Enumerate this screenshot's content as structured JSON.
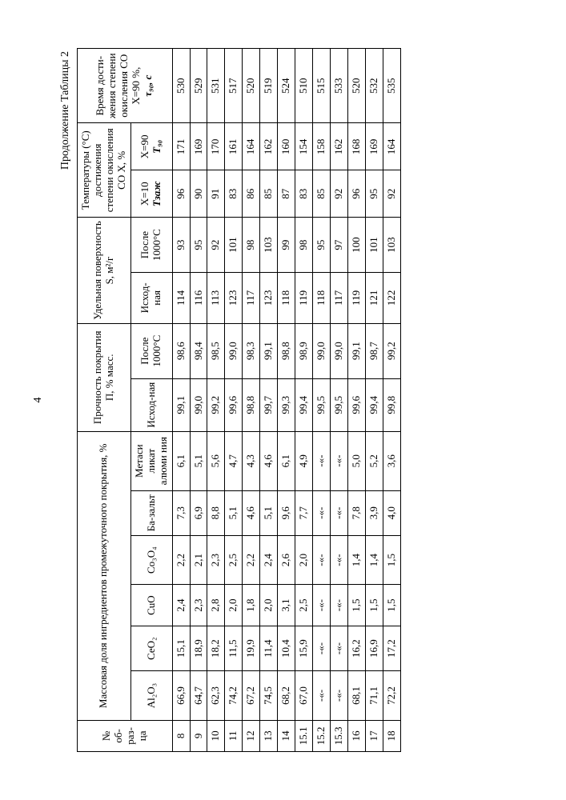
{
  "page_number": "4",
  "caption": "Продолжение Таблицы 2",
  "headers": {
    "num": "№ об-раз-ца",
    "mass_group": "Массовая доля ингредиентов промежуточного покрытия, %",
    "al2o3": "Al₂O₃",
    "ceo2": "CeO₂",
    "cuo": "CuO",
    "co3o4": "Co₃O₄",
    "bazalt": "Ба-зальт",
    "meta": "Метаси ликат алюми ния",
    "strength_group": "Прочность покрытия П, % масс.",
    "ishod": "Исход-ная",
    "after1000": "После 1000°С",
    "surface_group": "Удельная поверхность S, м²/г",
    "temp_group": "Температуры (°С) достижения степени окисления СО X, %",
    "t10_a": "X=10",
    "t10_b": "Tзаж",
    "t90_a": "X=90",
    "t90_b": "T₉₀",
    "time_group_a": "Время дости-жения степени окисления СО",
    "time_group_b": "X=90 %,",
    "time_group_c": "τ₉₀, c"
  },
  "rows": [
    {
      "n": "8",
      "al": "66,9",
      "ce": "15,1",
      "cu": "2,4",
      "co": "2,2",
      "bz": "7,3",
      "me": "6,1",
      "pi": "99,1",
      "pa": "98,6",
      "si": "114",
      "sa": "93",
      "t10": "96",
      "t90": "171",
      "tm": "530"
    },
    {
      "n": "9",
      "al": "64,7",
      "ce": "18,9",
      "cu": "2,3",
      "co": "2,1",
      "bz": "6,9",
      "me": "5,1",
      "pi": "99,0",
      "pa": "98,4",
      "si": "116",
      "sa": "95",
      "t10": "90",
      "t90": "169",
      "tm": "529"
    },
    {
      "n": "10",
      "al": "62,3",
      "ce": "18,2",
      "cu": "2,8",
      "co": "2,3",
      "bz": "8,8",
      "me": "5,6",
      "pi": "99,2",
      "pa": "98,5",
      "si": "113",
      "sa": "92",
      "t10": "91",
      "t90": "170",
      "tm": "531"
    },
    {
      "n": "11",
      "al": "74,2",
      "ce": "11,5",
      "cu": "2,0",
      "co": "2,5",
      "bz": "5,1",
      "me": "4,7",
      "pi": "99,6",
      "pa": "99,0",
      "si": "123",
      "sa": "101",
      "t10": "83",
      "t90": "161",
      "tm": "517"
    },
    {
      "n": "12",
      "al": "67,2",
      "ce": "19,9",
      "cu": "1,8",
      "co": "2,2",
      "bz": "4,6",
      "me": "4,3",
      "pi": "98,8",
      "pa": "98,3",
      "si": "117",
      "sa": "98",
      "t10": "86",
      "t90": "164",
      "tm": "520"
    },
    {
      "n": "13",
      "al": "74,5",
      "ce": "11,4",
      "cu": "2,0",
      "co": "2,4",
      "bz": "5,1",
      "me": "4,6",
      "pi": "99,7",
      "pa": "99,1",
      "si": "123",
      "sa": "103",
      "t10": "85",
      "t90": "162",
      "tm": "519"
    },
    {
      "n": "14",
      "al": "68,2",
      "ce": "10,4",
      "cu": "3,1",
      "co": "2,6",
      "bz": "9,6",
      "me": "6,1",
      "pi": "99,3",
      "pa": "98,8",
      "si": "118",
      "sa": "99",
      "t10": "87",
      "t90": "160",
      "tm": "524"
    },
    {
      "n": "15.1",
      "al": "67,0",
      "ce": "15,9",
      "cu": "2,5",
      "co": "2,0",
      "bz": "7,7",
      "me": "4,9",
      "pi": "99,4",
      "pa": "98,9",
      "si": "119",
      "sa": "98",
      "t10": "83",
      "t90": "154",
      "tm": "510"
    },
    {
      "n": "15.2",
      "al": "-«-",
      "ce": "-«-",
      "cu": "-«-",
      "co": "-«-",
      "bz": "-«-",
      "me": "-«-",
      "pi": "99,5",
      "pa": "99,0",
      "si": "118",
      "sa": "95",
      "t10": "85",
      "t90": "158",
      "tm": "515"
    },
    {
      "n": "15.3",
      "al": "-«-",
      "ce": "-«-",
      "cu": "-«-",
      "co": "-«-",
      "bz": "-«-",
      "me": "-«-",
      "pi": "99,5",
      "pa": "99,0",
      "si": "117",
      "sa": "97",
      "t10": "92",
      "t90": "162",
      "tm": "533"
    },
    {
      "n": "16",
      "al": "68,1",
      "ce": "16,2",
      "cu": "1,5",
      "co": "1,4",
      "bz": "7,8",
      "me": "5,0",
      "pi": "99,6",
      "pa": "99,1",
      "si": "119",
      "sa": "100",
      "t10": "96",
      "t90": "168",
      "tm": "520"
    },
    {
      "n": "17",
      "al": "71,1",
      "ce": "16,9",
      "cu": "1,5",
      "co": "1,4",
      "bz": "3,9",
      "me": "5,2",
      "pi": "99,4",
      "pa": "98,7",
      "si": "121",
      "sa": "101",
      "t10": "95",
      "t90": "169",
      "tm": "532"
    },
    {
      "n": "18",
      "al": "72,2",
      "ce": "17,2",
      "cu": "1,5",
      "co": "1,5",
      "bz": "4,0",
      "me": "3,6",
      "pi": "99,8",
      "pa": "99,2",
      "si": "122",
      "sa": "103",
      "t10": "92",
      "t90": "164",
      "tm": "535"
    }
  ]
}
